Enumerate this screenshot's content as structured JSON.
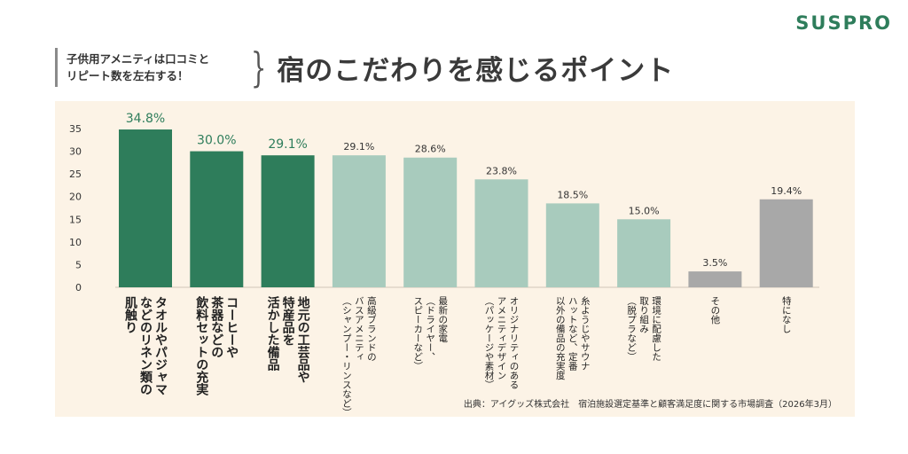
{
  "logo": "SUSPRO",
  "header": {
    "subtitle_line1": "子供用アメニティは口コミと",
    "subtitle_line2": "リピート数を左右する！",
    "title": "宿のこだわりを感じるポイント"
  },
  "source": "出典：アイグッズ株式会社　宿泊施設選定基準と顧客満足度に関する市場調査（2026年3月）",
  "colors": {
    "top": "#2e7d5b",
    "mid": "#a8cbbd",
    "other": "#a8a8a8",
    "top_label": "#2e7d5b",
    "panel": "#fcf3e6"
  },
  "chart_data": {
    "type": "bar",
    "ylim": [
      0,
      35
    ],
    "yticks": [
      0,
      5,
      10,
      15,
      20,
      25,
      30,
      35
    ],
    "grid": false,
    "categories": [
      [
        "タオルやパジャマ",
        "などのリネン類の",
        "肌触り"
      ],
      [
        "コーヒーや",
        "茶器などの",
        "飲料セットの充実"
      ],
      [
        "地元の工芸品や",
        "特産品を",
        "活かした備品"
      ],
      [
        "高級ブランドの",
        "バスアメニティ",
        "（シャンプー・リンスなど）"
      ],
      [
        "最新の家電",
        "（ドライヤー、",
        "スピーカーなど）"
      ],
      [
        "オリジナリティのある",
        "アメニティデザイン",
        "（パッケージや素材）"
      ],
      [
        "糸ようじやサウナ",
        "ハットなど、定番",
        "以外の備品の充実度"
      ],
      [
        "環境に配慮した",
        "取り組み",
        "（脱プラなど）"
      ],
      [
        "その他"
      ],
      [
        "特になし"
      ]
    ],
    "values": [
      34.8,
      30.0,
      29.1,
      29.1,
      28.6,
      23.8,
      18.5,
      15.0,
      3.5,
      19.4
    ],
    "value_labels": [
      "34.8%",
      "30.0%",
      "29.1%",
      "29.1%",
      "28.6%",
      "23.8%",
      "18.5%",
      "15.0%",
      "3.5%",
      "19.4%"
    ],
    "groups": [
      "top",
      "top",
      "top",
      "mid",
      "mid",
      "mid",
      "mid",
      "mid",
      "other",
      "other"
    ]
  }
}
